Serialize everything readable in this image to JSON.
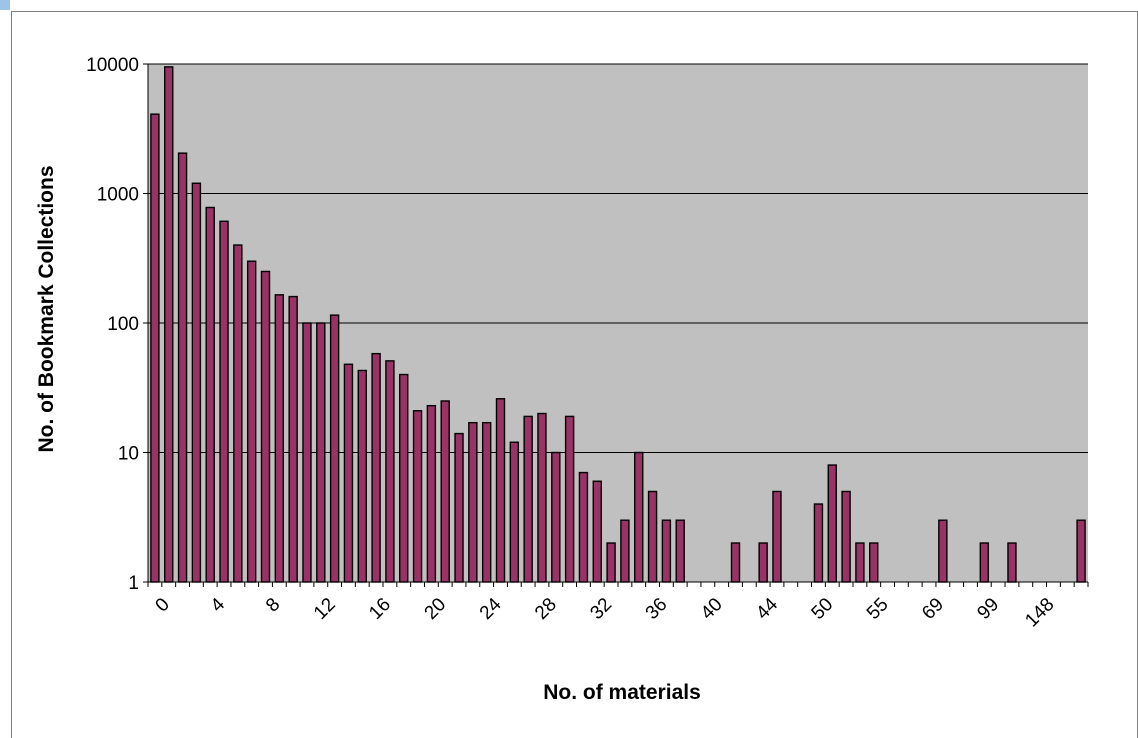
{
  "colors": {
    "plot_background": "#c0c0c0",
    "bar_fill": "#993366",
    "bar_stroke": "#000000",
    "gridline": "#000000",
    "frame": "#808080",
    "corner_marker": "#9dc3e6"
  },
  "chart_data": {
    "type": "bar",
    "xlabel": "No. of materials",
    "ylabel": "No. of Bookmark Collections",
    "yscale": "log",
    "ylim": [
      1,
      10000
    ],
    "yticks": [
      "1",
      "10",
      "100",
      "1000",
      "10000"
    ],
    "grid": "horizontal",
    "legend": "none",
    "xtick_labels": [
      "0",
      "4",
      "8",
      "12",
      "16",
      "20",
      "24",
      "28",
      "32",
      "36",
      "40",
      "44",
      "50",
      "55",
      "69",
      "99",
      "148"
    ],
    "xtick_every": 4,
    "values": [
      4100,
      9500,
      2050,
      1200,
      780,
      610,
      400,
      300,
      250,
      165,
      160,
      100,
      100,
      115,
      48,
      43,
      58,
      51,
      40,
      21,
      23,
      25,
      14,
      17,
      17,
      26,
      12,
      19,
      20,
      10,
      19,
      7,
      6,
      2,
      3,
      10,
      5,
      3,
      3,
      null,
      null,
      null,
      2,
      null,
      2,
      5,
      null,
      null,
      4,
      8,
      5,
      2,
      2,
      null,
      null,
      null,
      null,
      3,
      null,
      null,
      2,
      null,
      2,
      null,
      null,
      null,
      null,
      3
    ]
  }
}
